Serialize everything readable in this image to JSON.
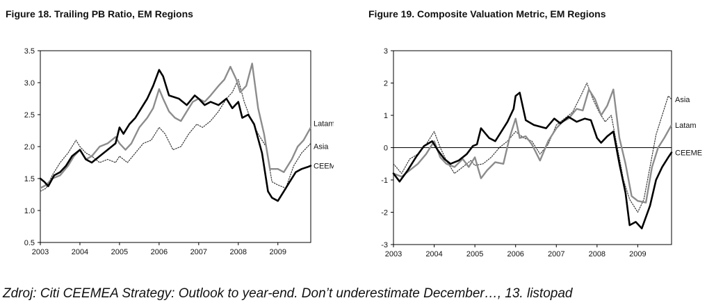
{
  "figures": {
    "left_title": "Figure 18. Trailing PB Ratio, EM Regions",
    "right_title": "Figure 19. Composite Valuation Metric, EM Regions"
  },
  "source": "Zdroj: Citi CEEMEA Strategy: Outlook to year-end. Don’t underestimate December…, 13. listopad",
  "chart_data": [
    {
      "type": "line",
      "title": "Figure 18. Trailing PB Ratio, EM Regions",
      "x_tick_labels": [
        "2003",
        "2004",
        "2005",
        "2006",
        "2007",
        "2008",
        "2009"
      ],
      "y_tick_labels": [
        "0.5",
        "1.0",
        "1.5",
        "2.0",
        "2.5",
        "3.0",
        "3.5"
      ],
      "ylim": [
        0.5,
        3.5
      ],
      "xlim": [
        2003.0,
        2009.83
      ],
      "series": [
        {
          "name": "CEEMEA",
          "color": "#000000",
          "style": "solid-thick",
          "x": [
            2003.0,
            2003.1,
            2003.2,
            2003.35,
            2003.5,
            2003.65,
            2003.8,
            2004.0,
            2004.15,
            2004.3,
            2004.5,
            2004.7,
            2004.9,
            2005.0,
            2005.1,
            2005.25,
            2005.4,
            2005.55,
            2005.7,
            2005.85,
            2006.0,
            2006.1,
            2006.25,
            2006.5,
            2006.7,
            2006.9,
            2007.0,
            2007.15,
            2007.3,
            2007.5,
            2007.7,
            2007.85,
            2008.0,
            2008.1,
            2008.25,
            2008.4,
            2008.6,
            2008.75,
            2008.85,
            2009.0,
            2009.15,
            2009.3,
            2009.45,
            2009.6,
            2009.75,
            2009.83
          ],
          "y": [
            1.5,
            1.45,
            1.38,
            1.55,
            1.6,
            1.7,
            1.85,
            1.95,
            1.8,
            1.75,
            1.85,
            1.95,
            2.05,
            2.3,
            2.2,
            2.35,
            2.45,
            2.6,
            2.75,
            2.95,
            3.2,
            3.1,
            2.8,
            2.75,
            2.65,
            2.8,
            2.75,
            2.65,
            2.7,
            2.65,
            2.75,
            2.6,
            2.7,
            2.45,
            2.5,
            2.35,
            1.9,
            1.3,
            1.2,
            1.15,
            1.3,
            1.45,
            1.6,
            1.65,
            1.68,
            1.7
          ]
        },
        {
          "name": "Latam",
          "color": "#8c8c8c",
          "style": "solid-thick",
          "x": [
            2003.0,
            2003.15,
            2003.3,
            2003.5,
            2003.7,
            2003.85,
            2004.0,
            2004.15,
            2004.3,
            2004.5,
            2004.7,
            2004.9,
            2005.0,
            2005.15,
            2005.3,
            2005.5,
            2005.7,
            2005.85,
            2006.0,
            2006.1,
            2006.25,
            2006.4,
            2006.55,
            2006.7,
            2006.85,
            2007.0,
            2007.15,
            2007.3,
            2007.5,
            2007.65,
            2007.8,
            2007.95,
            2008.05,
            2008.2,
            2008.35,
            2008.5,
            2008.65,
            2008.8,
            2009.0,
            2009.15,
            2009.35,
            2009.5,
            2009.65,
            2009.83
          ],
          "y": [
            1.35,
            1.4,
            1.5,
            1.55,
            1.7,
            1.85,
            1.95,
            1.8,
            1.85,
            2.0,
            2.05,
            2.15,
            2.05,
            1.95,
            2.05,
            2.3,
            2.45,
            2.6,
            2.9,
            2.75,
            2.55,
            2.45,
            2.4,
            2.55,
            2.7,
            2.75,
            2.7,
            2.8,
            2.95,
            3.05,
            3.25,
            3.05,
            2.85,
            2.95,
            3.3,
            2.6,
            2.2,
            1.65,
            1.65,
            1.6,
            1.8,
            2.0,
            2.1,
            2.3
          ]
        },
        {
          "name": "Asia",
          "color": "#333333",
          "style": "dotted",
          "x": [
            2003.0,
            2003.15,
            2003.3,
            2003.5,
            2003.7,
            2003.9,
            2004.0,
            2004.15,
            2004.3,
            2004.5,
            2004.7,
            2004.9,
            2005.0,
            2005.2,
            2005.4,
            2005.6,
            2005.8,
            2006.0,
            2006.15,
            2006.35,
            2006.55,
            2006.75,
            2006.95,
            2007.1,
            2007.3,
            2007.5,
            2007.7,
            2007.85,
            2008.0,
            2008.15,
            2008.3,
            2008.5,
            2008.7,
            2008.85,
            2009.0,
            2009.2,
            2009.4,
            2009.6,
            2009.83
          ],
          "y": [
            1.3,
            1.35,
            1.55,
            1.75,
            1.9,
            2.1,
            2.0,
            1.9,
            1.85,
            1.75,
            1.8,
            1.75,
            1.85,
            1.75,
            1.9,
            2.05,
            2.1,
            2.3,
            2.2,
            1.95,
            2.0,
            2.2,
            2.35,
            2.3,
            2.4,
            2.55,
            2.75,
            2.85,
            3.05,
            2.7,
            2.45,
            2.2,
            2.0,
            1.45,
            1.4,
            1.35,
            1.7,
            1.9,
            2.05
          ]
        }
      ],
      "legend": [
        "Latam",
        "Asia",
        "CEEMEA"
      ],
      "legend_placement": "right-end-of-lines",
      "grid": false
    },
    {
      "type": "line",
      "title": "Figure 19. Composite Valuation Metric, EM Regions",
      "x_tick_labels": [
        "2003",
        "2004",
        "2005",
        "2006",
        "2007",
        "2008",
        "2009"
      ],
      "y_tick_labels": [
        "-3",
        "-2",
        "-1",
        "0",
        "1",
        "2",
        "3"
      ],
      "ylim": [
        -3,
        3
      ],
      "xlim": [
        2003.0,
        2009.83
      ],
      "zero_line": true,
      "series": [
        {
          "name": "CEEMEA",
          "color": "#000000",
          "style": "solid-thick",
          "x": [
            2003.0,
            2003.15,
            2003.35,
            2003.55,
            2003.75,
            2003.95,
            2004.1,
            2004.25,
            2004.4,
            2004.6,
            2004.8,
            2004.95,
            2005.05,
            2005.15,
            2005.35,
            2005.5,
            2005.65,
            2005.8,
            2005.95,
            2006.0,
            2006.1,
            2006.25,
            2006.45,
            2006.6,
            2006.75,
            2006.95,
            2007.1,
            2007.3,
            2007.5,
            2007.7,
            2007.85,
            2008.0,
            2008.1,
            2008.25,
            2008.4,
            2008.55,
            2008.7,
            2008.8,
            2008.95,
            2009.1,
            2009.3,
            2009.45,
            2009.6,
            2009.75,
            2009.83
          ],
          "y": [
            -0.8,
            -1.05,
            -0.7,
            -0.3,
            0.05,
            0.2,
            -0.1,
            -0.35,
            -0.5,
            -0.4,
            -0.2,
            0.05,
            0.1,
            0.6,
            0.3,
            0.2,
            0.5,
            0.8,
            1.2,
            1.6,
            1.7,
            0.85,
            0.7,
            0.65,
            0.6,
            0.9,
            0.75,
            0.95,
            0.8,
            0.9,
            0.85,
            0.3,
            0.15,
            0.35,
            0.5,
            -0.5,
            -1.4,
            -2.4,
            -2.3,
            -2.5,
            -1.8,
            -1.0,
            -0.6,
            -0.3,
            -0.15
          ]
        },
        {
          "name": "Latam",
          "color": "#8c8c8c",
          "style": "solid-thick",
          "x": [
            2003.0,
            2003.2,
            2003.4,
            2003.6,
            2003.8,
            2004.0,
            2004.15,
            2004.3,
            2004.5,
            2004.7,
            2004.85,
            2005.0,
            2005.15,
            2005.3,
            2005.5,
            2005.7,
            2005.85,
            2006.0,
            2006.1,
            2006.25,
            2006.4,
            2006.6,
            2006.8,
            2007.0,
            2007.15,
            2007.3,
            2007.5,
            2007.65,
            2007.8,
            2007.95,
            2008.1,
            2008.25,
            2008.4,
            2008.55,
            2008.7,
            2008.85,
            2009.0,
            2009.2,
            2009.35,
            2009.5,
            2009.65,
            2009.83
          ],
          "y": [
            -0.8,
            -0.9,
            -0.7,
            -0.5,
            -0.2,
            0.2,
            -0.3,
            -0.5,
            -0.6,
            -0.35,
            -0.6,
            -0.3,
            -0.95,
            -0.7,
            -0.45,
            -0.5,
            0.3,
            0.9,
            0.3,
            0.35,
            0.1,
            -0.4,
            0.2,
            0.6,
            0.8,
            0.9,
            1.2,
            1.15,
            1.8,
            1.5,
            1.0,
            1.3,
            1.8,
            0.3,
            -0.5,
            -1.5,
            -1.65,
            -1.7,
            -0.6,
            0.0,
            0.3,
            0.7
          ]
        },
        {
          "name": "Asia",
          "color": "#333333",
          "style": "dotted",
          "x": [
            2003.0,
            2003.2,
            2003.4,
            2003.6,
            2003.8,
            2004.0,
            2004.15,
            2004.3,
            2004.5,
            2004.7,
            2004.9,
            2005.0,
            2005.2,
            2005.4,
            2005.6,
            2005.8,
            2006.0,
            2006.2,
            2006.4,
            2006.6,
            2006.8,
            2007.0,
            2007.2,
            2007.4,
            2007.6,
            2007.75,
            2007.9,
            2008.05,
            2008.2,
            2008.35,
            2008.5,
            2008.65,
            2008.8,
            2009.0,
            2009.15,
            2009.3,
            2009.45,
            2009.6,
            2009.75,
            2009.83
          ],
          "y": [
            -0.5,
            -0.8,
            -0.35,
            -0.2,
            0.1,
            0.5,
            0.0,
            -0.4,
            -0.8,
            -0.6,
            -0.4,
            -0.55,
            -0.5,
            -0.3,
            0.0,
            0.2,
            0.5,
            0.3,
            0.2,
            -0.2,
            0.1,
            0.7,
            0.9,
            1.1,
            1.6,
            2.0,
            1.5,
            1.1,
            0.8,
            1.0,
            0.0,
            -1.0,
            -1.6,
            -2.0,
            -1.6,
            -0.6,
            0.4,
            1.0,
            1.6,
            1.5
          ]
        }
      ],
      "legend": [
        "Asia",
        "Latam",
        "CEEMEA"
      ],
      "legend_placement": "right-end-of-lines",
      "grid": false
    }
  ]
}
